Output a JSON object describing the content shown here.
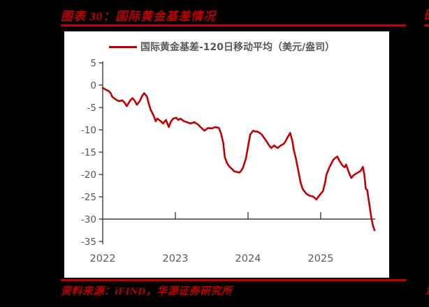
{
  "page": {
    "figure_title": "图表 30：国际黄金基差情况",
    "source_note": "资料来源：iFIND，华源证券研究所",
    "accent_color": "#C00000",
    "clipped_next_column_top": "图",
    "clipped_next_column_bottom": "资"
  },
  "chart_data": {
    "type": "line",
    "title": "国际黄金基差情况",
    "legend": [
      "国际黄金基差-120日移动平均（美元/盎司）"
    ],
    "legend_position": "top-center",
    "xlabel": "",
    "ylabel": "",
    "xlim": [
      2022.0,
      2025.75
    ],
    "ylim": [
      -35,
      5
    ],
    "yticks": [
      5,
      0,
      -5,
      -10,
      -15,
      -20,
      -25,
      -30,
      -35
    ],
    "xticks": [
      2022,
      2023,
      2024,
      2025
    ],
    "x_axis_crosses_at": -30,
    "grid": false,
    "line_color": "#C00000",
    "axis_color": "#404040",
    "tick_label_color": "#595959",
    "series": [
      {
        "name": "国际黄金基差-120日移动平均（美元/盎司）",
        "points": [
          [
            2022.0,
            -0.6
          ],
          [
            2022.04,
            -1.0
          ],
          [
            2022.08,
            -1.3
          ],
          [
            2022.11,
            -1.8
          ],
          [
            2022.13,
            -2.6
          ],
          [
            2022.17,
            -3.1
          ],
          [
            2022.2,
            -3.4
          ],
          [
            2022.23,
            -3.6
          ],
          [
            2022.27,
            -3.4
          ],
          [
            2022.3,
            -3.9
          ],
          [
            2022.33,
            -4.7
          ],
          [
            2022.35,
            -4.2
          ],
          [
            2022.38,
            -3.4
          ],
          [
            2022.41,
            -2.9
          ],
          [
            2022.44,
            -3.5
          ],
          [
            2022.47,
            -4.4
          ],
          [
            2022.51,
            -3.6
          ],
          [
            2022.54,
            -2.5
          ],
          [
            2022.57,
            -1.8
          ],
          [
            2022.61,
            -2.6
          ],
          [
            2022.63,
            -3.9
          ],
          [
            2022.66,
            -5.5
          ],
          [
            2022.7,
            -6.8
          ],
          [
            2022.73,
            -8.1
          ],
          [
            2022.75,
            -7.5
          ],
          [
            2022.8,
            -8.1
          ],
          [
            2022.83,
            -8.6
          ],
          [
            2022.87,
            -7.8
          ],
          [
            2022.91,
            -9.4
          ],
          [
            2022.94,
            -8.1
          ],
          [
            2022.97,
            -7.5
          ],
          [
            2023.01,
            -7.3
          ],
          [
            2023.04,
            -7.8
          ],
          [
            2023.07,
            -7.5
          ],
          [
            2023.12,
            -8.1
          ],
          [
            2023.16,
            -8.3
          ],
          [
            2023.21,
            -8.6
          ],
          [
            2023.26,
            -8.3
          ],
          [
            2023.31,
            -8.8
          ],
          [
            2023.36,
            -9.6
          ],
          [
            2023.4,
            -10.2
          ],
          [
            2023.45,
            -9.6
          ],
          [
            2023.5,
            -9.7
          ],
          [
            2023.55,
            -9.4
          ],
          [
            2023.6,
            -9.6
          ],
          [
            2023.63,
            -10.9
          ],
          [
            2023.66,
            -13.0
          ],
          [
            2023.68,
            -16.1
          ],
          [
            2023.71,
            -17.4
          ],
          [
            2023.74,
            -18.2
          ],
          [
            2023.78,
            -18.8
          ],
          [
            2023.81,
            -19.3
          ],
          [
            2023.86,
            -19.5
          ],
          [
            2023.88,
            -19.6
          ],
          [
            2023.9,
            -19.3
          ],
          [
            2023.93,
            -18.5
          ],
          [
            2023.97,
            -16.5
          ],
          [
            2024.0,
            -13.8
          ],
          [
            2024.03,
            -11.1
          ],
          [
            2024.07,
            -10.2
          ],
          [
            2024.1,
            -10.4
          ],
          [
            2024.13,
            -10.4
          ],
          [
            2024.16,
            -10.7
          ],
          [
            2024.19,
            -11.1
          ],
          [
            2024.22,
            -11.8
          ],
          [
            2024.26,
            -12.7
          ],
          [
            2024.29,
            -13.5
          ],
          [
            2024.32,
            -14.1
          ],
          [
            2024.36,
            -13.5
          ],
          [
            2024.38,
            -13.8
          ],
          [
            2024.41,
            -14.1
          ],
          [
            2024.45,
            -13.5
          ],
          [
            2024.48,
            -13.3
          ],
          [
            2024.51,
            -12.8
          ],
          [
            2024.54,
            -11.8
          ],
          [
            2024.58,
            -10.7
          ],
          [
            2024.61,
            -12.5
          ],
          [
            2024.63,
            -14.5
          ],
          [
            2024.66,
            -16.5
          ],
          [
            2024.69,
            -19.0
          ],
          [
            2024.72,
            -21.6
          ],
          [
            2024.75,
            -23.2
          ],
          [
            2024.8,
            -24.3
          ],
          [
            2024.85,
            -24.8
          ],
          [
            2024.89,
            -24.9
          ],
          [
            2024.94,
            -25.6
          ],
          [
            2024.99,
            -24.5
          ],
          [
            2025.03,
            -23.8
          ],
          [
            2025.06,
            -21.9
          ],
          [
            2025.08,
            -20.0
          ],
          [
            2025.12,
            -18.4
          ],
          [
            2025.15,
            -17.4
          ],
          [
            2025.18,
            -16.6
          ],
          [
            2025.21,
            -16.2
          ],
          [
            2025.23,
            -16.0
          ],
          [
            2025.26,
            -17.0
          ],
          [
            2025.3,
            -18.0
          ],
          [
            2025.33,
            -18.4
          ],
          [
            2025.35,
            -17.8
          ],
          [
            2025.38,
            -19.2
          ],
          [
            2025.42,
            -20.8
          ],
          [
            2025.45,
            -20.2
          ],
          [
            2025.49,
            -19.8
          ],
          [
            2025.52,
            -19.5
          ],
          [
            2025.55,
            -19.2
          ],
          [
            2025.58,
            -18.3
          ],
          [
            2025.6,
            -20.0
          ],
          [
            2025.62,
            -23.2
          ],
          [
            2025.64,
            -23.5
          ],
          [
            2025.66,
            -25.6
          ],
          [
            2025.68,
            -27.8
          ],
          [
            2025.7,
            -30.0
          ],
          [
            2025.72,
            -31.5
          ],
          [
            2025.74,
            -32.5
          ]
        ]
      }
    ]
  }
}
